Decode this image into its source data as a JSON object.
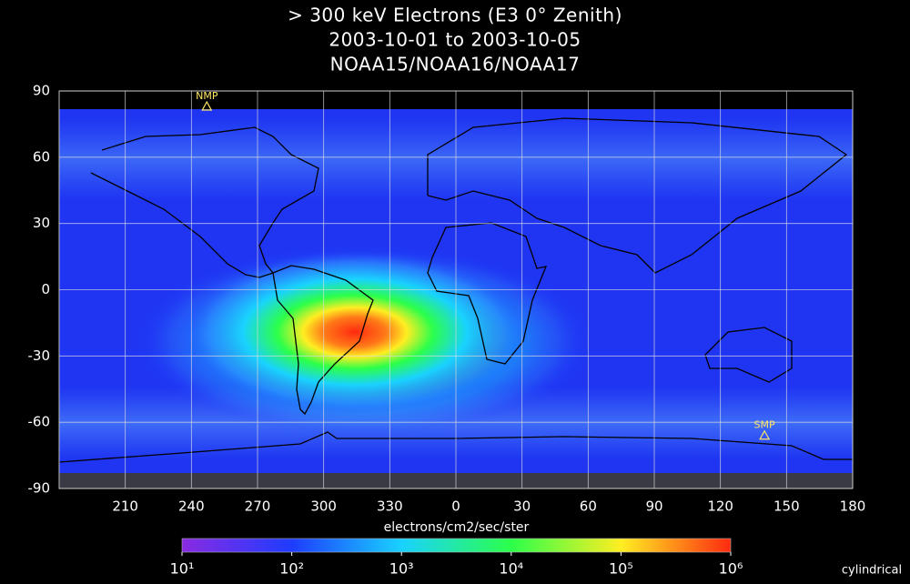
{
  "chart_data": {
    "type": "map",
    "title": "> 300 keV  Electrons (E3 0° Zenith)",
    "subtitle": [
      "2003-10-01 to 2003-10-05",
      "NOAA15/NOAA16/NOAA17"
    ],
    "xlim": [
      180,
      540
    ],
    "xticks": [
      210,
      240,
      270,
      300,
      330,
      {
        "value": 360,
        "label": "0"
      },
      {
        "value": 390,
        "label": "30"
      },
      {
        "value": 420,
        "label": "60"
      },
      {
        "value": 450,
        "label": "90"
      },
      {
        "value": 480,
        "label": "120"
      },
      {
        "value": 510,
        "label": "150"
      },
      {
        "value": 540,
        "label": "180"
      }
    ],
    "ylim": [
      -90,
      90
    ],
    "yticks": [
      -90,
      -60,
      -30,
      0,
      30,
      60,
      90
    ],
    "grid": true,
    "annotations": [
      {
        "text": "NMP",
        "x": 247,
        "y": 83
      },
      {
        "text": "SMP",
        "x": 500,
        "y": -66
      }
    ],
    "colorbar": {
      "label": "electrons/cm2/sec/ster",
      "log": true,
      "lim": [
        10,
        1000000
      ],
      "ticks": [
        {
          "value": 10,
          "label": "10¹"
        },
        {
          "value": 100,
          "label": "10²"
        },
        {
          "value": 1000,
          "label": "10³"
        },
        {
          "value": 10000,
          "label": "10⁴"
        },
        {
          "value": 100000,
          "label": "10⁵"
        },
        {
          "value": 1000000,
          "label": "10⁶"
        }
      ],
      "colors": [
        "#8a2be2",
        "#1e3cff",
        "#19d2ff",
        "#2cff4a",
        "#ffee22",
        "#ff2a10"
      ]
    },
    "projection": "cylindrical"
  }
}
